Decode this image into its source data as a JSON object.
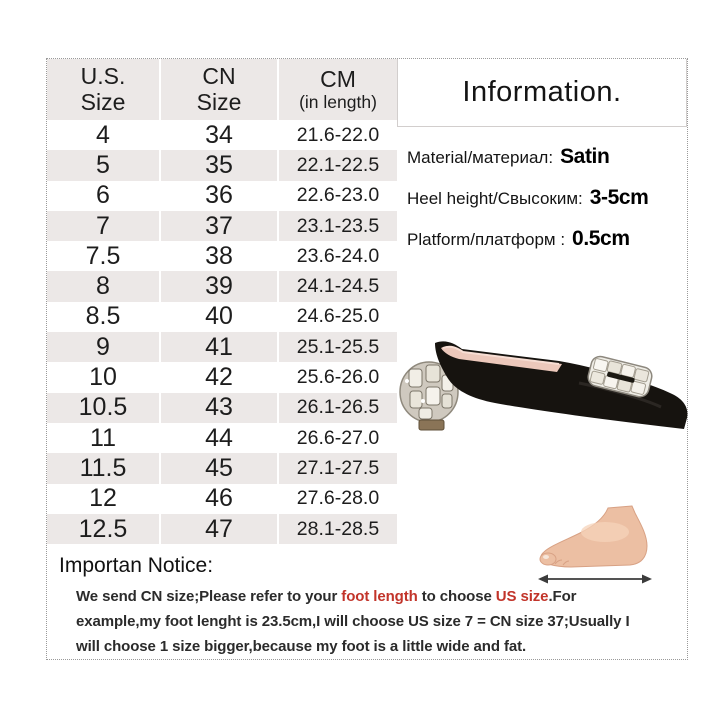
{
  "size_table": {
    "columns": [
      {
        "title": "U.S.",
        "subtitle": "Size"
      },
      {
        "title": "CN",
        "subtitle": "Size"
      },
      {
        "title": "CM",
        "subtitle": "(in length)"
      }
    ],
    "rows": [
      [
        "4",
        "34",
        "21.6-22.0"
      ],
      [
        "5",
        "35",
        "22.1-22.5"
      ],
      [
        "6",
        "36",
        "22.6-23.0"
      ],
      [
        "7",
        "37",
        "23.1-23.5"
      ],
      [
        "7.5",
        "38",
        "23.6-24.0"
      ],
      [
        "8",
        "39",
        "24.1-24.5"
      ],
      [
        "8.5",
        "40",
        "24.6-25.0"
      ],
      [
        "9",
        "41",
        "25.1-25.5"
      ],
      [
        "10",
        "42",
        "25.6-26.0"
      ],
      [
        "10.5",
        "43",
        "26.1-26.5"
      ],
      [
        "11",
        "44",
        "26.6-27.0"
      ],
      [
        "11.5",
        "45",
        "27.1-27.5"
      ],
      [
        "12",
        "46",
        "27.6-28.0"
      ],
      [
        "12.5",
        "47",
        "28.1-28.5"
      ]
    ]
  },
  "information": {
    "title": "Information.",
    "fields": [
      {
        "label": "Material/материал:",
        "value": "Satin"
      },
      {
        "label": "Heel height/Свысоким:",
        "value": "3-5cm"
      },
      {
        "label": "Platform/платформ :",
        "value": "0.5cm"
      }
    ]
  },
  "notice": {
    "title": "Importan Notice:",
    "segments": [
      {
        "text": "We send CN size;Please refer to your ",
        "highlight": false
      },
      {
        "text": "foot length",
        "highlight": true
      },
      {
        "text": " to choose ",
        "highlight": false
      },
      {
        "text": "US size",
        "highlight": true
      },
      {
        "text": ".For example,my foot lenght is 23.5cm,I will choose US size 7 = CN size 37;Usually I will choose 1 size bigger,because my foot is a little wide and fat.",
        "highlight": false
      }
    ]
  },
  "images": {
    "shoe": "black-satin-mule-crystal-heel",
    "foot": "foot-length-measurement"
  },
  "colors": {
    "highlight_red": "#c2342a",
    "row_stripe": "#ece8e7"
  }
}
